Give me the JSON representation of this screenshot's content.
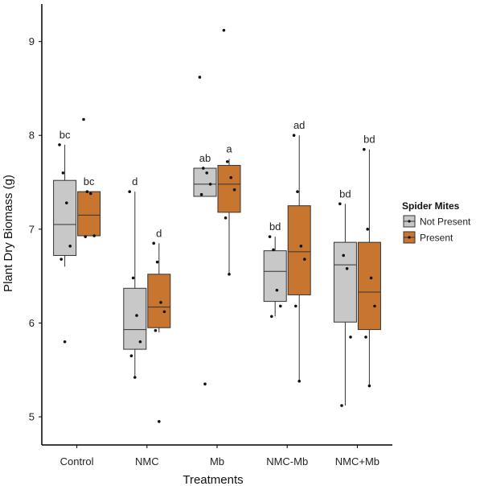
{
  "chart_data": {
    "type": "boxplot",
    "xlabel": "Treatments",
    "ylabel": "Plant Dry Biomass (g)",
    "ylim": [
      4.7,
      9.4
    ],
    "yticks": [
      5,
      6,
      7,
      8,
      9
    ],
    "categories": [
      "Control",
      "NMC",
      "Mb",
      "NMC-Mb",
      "NMC+Mb"
    ],
    "legend": {
      "title": "Spider Mites",
      "position": "right",
      "entries": [
        "Not Present",
        "Present"
      ]
    },
    "colors": {
      "Not Present": "#c8c8c8",
      "Present": "#c87530"
    },
    "series": [
      {
        "name": "Not Present",
        "boxes": [
          {
            "category": "Control",
            "min": 6.6,
            "q1": 6.72,
            "median": 7.05,
            "q3": 7.52,
            "max": 7.9,
            "label": "bc",
            "points": [
              7.9,
              7.6,
              7.28,
              6.82,
              6.68,
              5.8
            ]
          },
          {
            "category": "NMC",
            "min": 5.42,
            "q1": 5.72,
            "median": 5.93,
            "q3": 6.37,
            "max": 7.4,
            "label": "d",
            "points": [
              7.4,
              6.48,
              6.08,
              5.8,
              5.65,
              5.42
            ]
          },
          {
            "category": "Mb",
            "min": 7.35,
            "q1": 7.35,
            "median": 7.48,
            "q3": 7.65,
            "max": 7.65,
            "label": "ab",
            "points": [
              8.62,
              7.65,
              7.6,
              7.48,
              7.37,
              5.35
            ]
          },
          {
            "category": "NMC-Mb",
            "min": 6.07,
            "q1": 6.23,
            "median": 6.55,
            "q3": 6.77,
            "max": 6.92,
            "label": "bd",
            "points": [
              6.92,
              6.78,
              6.35,
              6.18,
              6.07
            ]
          },
          {
            "category": "NMC+Mb",
            "min": 5.12,
            "q1": 6.01,
            "median": 6.62,
            "q3": 6.86,
            "max": 7.27,
            "label": "bd",
            "points": [
              7.27,
              6.72,
              6.58,
              5.85,
              5.12
            ]
          }
        ]
      },
      {
        "name": "Present",
        "boxes": [
          {
            "category": "Control",
            "min": 6.93,
            "q1": 6.93,
            "median": 7.15,
            "q3": 7.4,
            "max": 7.4,
            "label": "bc",
            "points": [
              8.17,
              7.4,
              7.38,
              6.93,
              6.92
            ]
          },
          {
            "category": "NMC",
            "min": 5.9,
            "q1": 5.95,
            "median": 6.17,
            "q3": 6.52,
            "max": 6.85,
            "label": "d",
            "points": [
              6.85,
              6.65,
              6.22,
              6.12,
              5.92,
              4.95
            ]
          },
          {
            "category": "Mb",
            "min": 6.52,
            "q1": 7.18,
            "median": 7.48,
            "q3": 7.68,
            "max": 7.75,
            "label": "a",
            "points": [
              9.12,
              7.72,
              7.55,
              7.42,
              7.12,
              6.52
            ]
          },
          {
            "category": "NMC-Mb",
            "min": 5.38,
            "q1": 6.3,
            "median": 6.76,
            "q3": 7.25,
            "max": 8.0,
            "label": "ad",
            "points": [
              8.0,
              7.4,
              6.82,
              6.68,
              6.18,
              5.38
            ]
          },
          {
            "category": "NMC+Mb",
            "min": 5.33,
            "q1": 5.93,
            "median": 6.33,
            "q3": 6.86,
            "max": 7.85,
            "label": "bd",
            "points": [
              7.85,
              7.0,
              6.48,
              6.18,
              5.85,
              5.33
            ]
          }
        ]
      }
    ]
  }
}
